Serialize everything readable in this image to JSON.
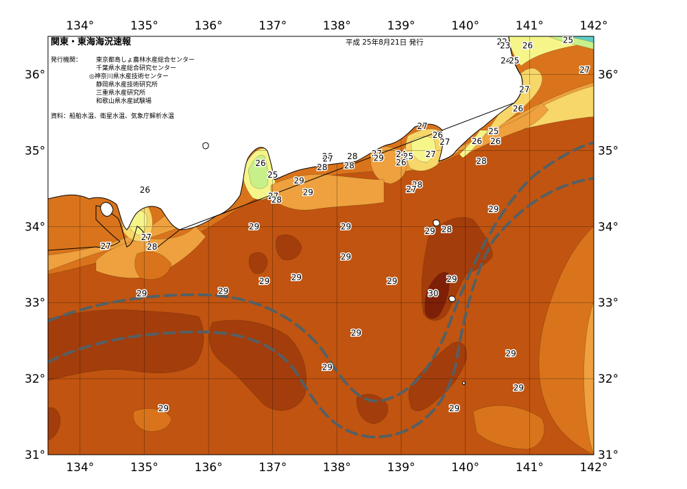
{
  "map": {
    "title": "関東・東海海況速報",
    "issue_date": "平成 25年8月21日 発行",
    "issuer_label": "発行機関：",
    "issuers": [
      "東京都島しょ農林水産総合センター",
      "千葉県水産総合研究センター",
      "◎神奈川県水産技術センター",
      "静岡県水産技術研究所",
      "三重県水産研究所",
      "和歌山県水産試験場"
    ],
    "sources": "資料：船舶水温、衛星水温、気象庁解析水温",
    "lon_ticks": [
      "134°",
      "135°",
      "136°",
      "137°",
      "138°",
      "139°",
      "140°",
      "141°",
      "142°"
    ],
    "lat_ticks": [
      "36°",
      "35°",
      "34°",
      "33°",
      "32°",
      "31°"
    ],
    "lon_values": [
      134,
      135,
      136,
      137,
      138,
      139,
      140,
      141,
      142
    ],
    "lat_values": [
      36,
      35,
      34,
      33,
      32,
      31
    ],
    "extent": {
      "lon": [
        133.5,
        142
      ],
      "lat": [
        31,
        36.5
      ]
    },
    "palette": {
      "t22": "#5fd0c8",
      "t23": "#8fe0a0",
      "t24": "#c8f08a",
      "t25": "#f6f58a",
      "t26": "#f7d66a",
      "t27": "#eea13e",
      "t28": "#d9741c",
      "t29": "#c05410",
      "t30": "#a33d0c",
      "t31": "#7e1f08",
      "land": "#ffffff",
      "coast": "#000000",
      "kuroshio": "#546064"
    },
    "isotherm_labels": [
      {
        "text": "22",
        "lon": 140.57,
        "lat": 36.43
      },
      {
        "text": "23",
        "lon": 140.62,
        "lat": 36.38
      },
      {
        "text": "25",
        "lon": 141.6,
        "lat": 36.45
      },
      {
        "text": "26",
        "lon": 140.97,
        "lat": 36.38
      },
      {
        "text": "24",
        "lon": 140.63,
        "lat": 36.18
      },
      {
        "text": "25",
        "lon": 140.76,
        "lat": 36.18
      },
      {
        "text": "27",
        "lon": 141.86,
        "lat": 36.06
      },
      {
        "text": "27",
        "lon": 140.92,
        "lat": 35.8
      },
      {
        "text": "26",
        "lon": 140.82,
        "lat": 35.55
      },
      {
        "text": "25",
        "lon": 140.44,
        "lat": 35.25
      },
      {
        "text": "26",
        "lon": 140.18,
        "lat": 35.12
      },
      {
        "text": "26",
        "lon": 140.47,
        "lat": 35.12
      },
      {
        "text": "27",
        "lon": 139.33,
        "lat": 35.32
      },
      {
        "text": "26",
        "lon": 139.57,
        "lat": 35.2
      },
      {
        "text": "27",
        "lon": 139.68,
        "lat": 35.11
      },
      {
        "text": "28",
        "lon": 140.25,
        "lat": 34.86
      },
      {
        "text": "26",
        "lon": 137.85,
        "lat": 34.92
      },
      {
        "text": "27",
        "lon": 137.86,
        "lat": 34.89
      },
      {
        "text": "28",
        "lon": 138.24,
        "lat": 34.92
      },
      {
        "text": "27",
        "lon": 138.62,
        "lat": 34.96
      },
      {
        "text": "29",
        "lon": 138.65,
        "lat": 34.9
      },
      {
        "text": "28",
        "lon": 138.19,
        "lat": 34.8
      },
      {
        "text": "24",
        "lon": 139.0,
        "lat": 34.95
      },
      {
        "text": "25",
        "lon": 139.11,
        "lat": 34.92
      },
      {
        "text": "26",
        "lon": 139.0,
        "lat": 34.84
      },
      {
        "text": "27",
        "lon": 139.46,
        "lat": 34.95
      },
      {
        "text": "26",
        "lon": 136.81,
        "lat": 34.83
      },
      {
        "text": "25",
        "lon": 137.0,
        "lat": 34.68
      },
      {
        "text": "28",
        "lon": 137.77,
        "lat": 34.78
      },
      {
        "text": "29",
        "lon": 137.41,
        "lat": 34.6
      },
      {
        "text": "29",
        "lon": 137.55,
        "lat": 34.45
      },
      {
        "text": "27",
        "lon": 137.01,
        "lat": 34.4
      },
      {
        "text": "28",
        "lon": 137.06,
        "lat": 34.35
      },
      {
        "text": "28",
        "lon": 139.25,
        "lat": 34.55
      },
      {
        "text": "27",
        "lon": 139.16,
        "lat": 34.49
      },
      {
        "text": "26",
        "lon": 135.01,
        "lat": 34.48
      },
      {
        "text": "29",
        "lon": 140.44,
        "lat": 34.23
      },
      {
        "text": "29",
        "lon": 136.71,
        "lat": 34.0
      },
      {
        "text": "29",
        "lon": 138.14,
        "lat": 34.0
      },
      {
        "text": "29",
        "lon": 139.45,
        "lat": 33.94
      },
      {
        "text": "28",
        "lon": 139.71,
        "lat": 33.96
      },
      {
        "text": "27",
        "lon": 135.03,
        "lat": 33.86
      },
      {
        "text": "28",
        "lon": 135.12,
        "lat": 33.73
      },
      {
        "text": "27",
        "lon": 134.4,
        "lat": 33.74
      },
      {
        "text": "29",
        "lon": 138.14,
        "lat": 33.6
      },
      {
        "text": "29",
        "lon": 137.37,
        "lat": 33.33
      },
      {
        "text": "29",
        "lon": 136.87,
        "lat": 33.28
      },
      {
        "text": "29",
        "lon": 138.86,
        "lat": 33.28
      },
      {
        "text": "29",
        "lon": 139.79,
        "lat": 33.31
      },
      {
        "text": "29",
        "lon": 136.23,
        "lat": 33.15
      },
      {
        "text": "29",
        "lon": 134.96,
        "lat": 33.12
      },
      {
        "text": "30",
        "lon": 139.5,
        "lat": 33.12
      },
      {
        "text": "29",
        "lon": 138.3,
        "lat": 32.6
      },
      {
        "text": "29",
        "lon": 140.71,
        "lat": 32.33
      },
      {
        "text": "29",
        "lon": 137.85,
        "lat": 32.15
      },
      {
        "text": "29",
        "lon": 140.83,
        "lat": 31.88
      },
      {
        "text": "29",
        "lon": 135.3,
        "lat": 31.61
      },
      {
        "text": "29",
        "lon": 139.83,
        "lat": 31.61
      }
    ]
  }
}
